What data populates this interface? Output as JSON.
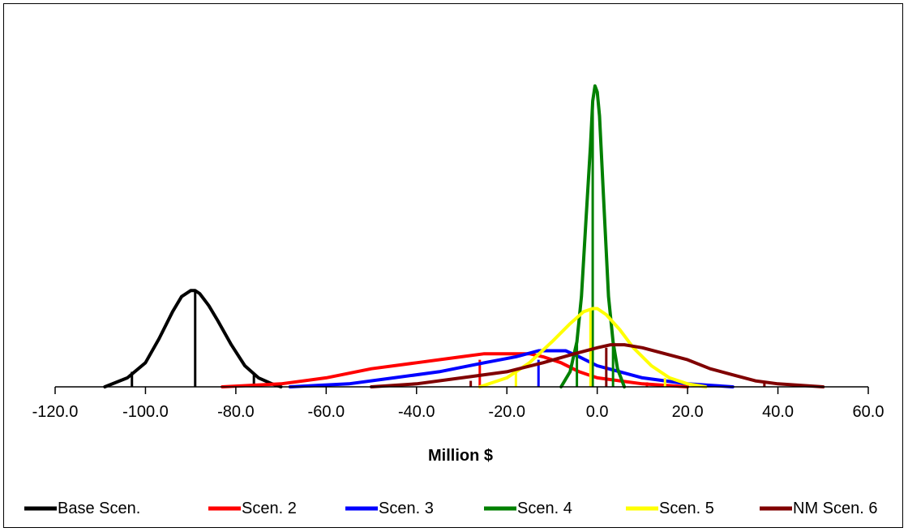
{
  "chart_data": {
    "type": "line",
    "xlabel": "Million $",
    "ylabel": "",
    "xlim": [
      -120,
      60
    ],
    "ylim": [
      0,
      1
    ],
    "y_axis_visible": false,
    "grid": false,
    "legend_placement": "bottom",
    "xticks": [
      -120,
      -100,
      -80,
      -60,
      -40,
      -20,
      0,
      20,
      40,
      60
    ],
    "xtick_labels": [
      "-120.0",
      "-100.0",
      "-80.0",
      "-60.0",
      "-40.0",
      "-20.0",
      "0.0",
      "20.0",
      "40.0",
      "60.0"
    ],
    "series": [
      {
        "name": "Base Scen.",
        "color": "#000000",
        "curve": {
          "x": [
            -109,
            -104,
            -100,
            -97,
            -94,
            -92,
            -90,
            -89,
            -88,
            -86,
            -84,
            -81,
            -78,
            -75,
            -72,
            -70
          ],
          "y": [
            0.0,
            0.03,
            0.08,
            0.16,
            0.25,
            0.3,
            0.32,
            0.32,
            0.31,
            0.27,
            0.22,
            0.14,
            0.07,
            0.03,
            0.01,
            0.0
          ]
        },
        "markers": [
          {
            "x": -103,
            "height": 0.05
          },
          {
            "x": -89,
            "height": 0.32
          },
          {
            "x": -76,
            "height": 0.04
          }
        ]
      },
      {
        "name": "Scen. 2",
        "color": "#ff0000",
        "curve": {
          "x": [
            -83,
            -70,
            -60,
            -50,
            -40,
            -30,
            -25,
            -20,
            -15,
            -12,
            -8,
            -4,
            0,
            5,
            10,
            15,
            20
          ],
          "y": [
            0.0,
            0.01,
            0.03,
            0.06,
            0.08,
            0.1,
            0.11,
            0.11,
            0.11,
            0.1,
            0.08,
            0.05,
            0.03,
            0.02,
            0.01,
            0.005,
            0.0
          ]
        },
        "markers": [
          {
            "x": -26,
            "height": 0.09
          },
          {
            "x": 11,
            "height": 0.015
          }
        ]
      },
      {
        "name": "Scen. 3",
        "color": "#0000ff",
        "curve": {
          "x": [
            -68,
            -55,
            -45,
            -35,
            -25,
            -18,
            -13,
            -10,
            -7,
            -4,
            0,
            5,
            10,
            15,
            20,
            25,
            30
          ],
          "y": [
            0.0,
            0.01,
            0.03,
            0.05,
            0.08,
            0.1,
            0.12,
            0.12,
            0.12,
            0.1,
            0.07,
            0.05,
            0.03,
            0.02,
            0.01,
            0.005,
            0.0
          ]
        },
        "markers": [
          {
            "x": -13,
            "height": 0.09
          }
        ]
      },
      {
        "name": "Scen. 4",
        "color": "#008000",
        "curve": {
          "x": [
            -8,
            -6,
            -4.5,
            -3.5,
            -2.5,
            -1.5,
            -1,
            -0.5,
            0,
            0.5,
            1.5,
            2.5,
            3.5,
            4.5,
            6
          ],
          "y": [
            0.0,
            0.05,
            0.15,
            0.3,
            0.55,
            0.8,
            0.95,
            1.0,
            0.98,
            0.9,
            0.6,
            0.3,
            0.15,
            0.06,
            0.0
          ]
        },
        "markers": [
          {
            "x": -4.5,
            "height": 0.15
          },
          {
            "x": -1,
            "height": 0.95
          },
          {
            "x": 3.5,
            "height": 0.15
          }
        ]
      },
      {
        "name": "Scen. 5",
        "color": "#ffff00",
        "curve": {
          "x": [
            -26,
            -20,
            -15,
            -10,
            -6,
            -3,
            -1,
            0,
            2,
            5,
            8,
            12,
            16,
            20,
            24
          ],
          "y": [
            0.0,
            0.03,
            0.08,
            0.15,
            0.21,
            0.25,
            0.26,
            0.26,
            0.24,
            0.19,
            0.13,
            0.07,
            0.03,
            0.01,
            0.0
          ]
        },
        "markers": [
          {
            "x": -18,
            "height": 0.05
          },
          {
            "x": -1.5,
            "height": 0.26
          },
          {
            "x": 15,
            "height": 0.03
          }
        ]
      },
      {
        "name": "NM Scen. 6",
        "color": "#800000",
        "curve": {
          "x": [
            -50,
            -40,
            -30,
            -20,
            -12,
            -5,
            0,
            3,
            6,
            10,
            15,
            20,
            25,
            30,
            35,
            40,
            45,
            50
          ],
          "y": [
            0.0,
            0.01,
            0.03,
            0.05,
            0.08,
            0.11,
            0.13,
            0.14,
            0.14,
            0.13,
            0.11,
            0.09,
            0.06,
            0.04,
            0.02,
            0.01,
            0.005,
            0.0
          ]
        },
        "markers": [
          {
            "x": -28,
            "height": 0.02
          },
          {
            "x": 2,
            "height": 0.13
          },
          {
            "x": 37,
            "height": 0.015
          }
        ]
      }
    ]
  }
}
